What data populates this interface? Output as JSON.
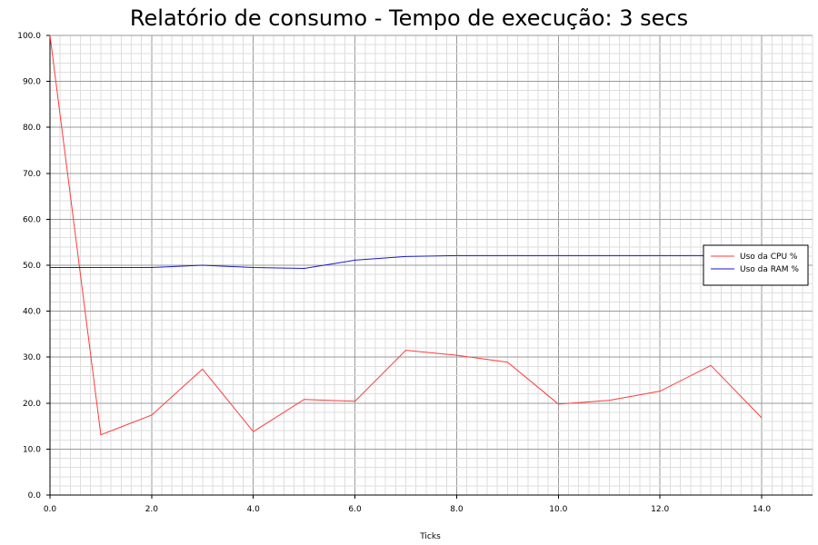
{
  "chart_data": {
    "type": "line",
    "title": "Relatório de consumo - Tempo de execução: 3 secs",
    "xlabel": "Ticks",
    "ylabel": "",
    "xlim": [
      0,
      15
    ],
    "ylim": [
      0,
      100
    ],
    "x_ticks": [
      "0.0",
      "2.0",
      "4.0",
      "6.0",
      "8.0",
      "10.0",
      "12.0",
      "14.0"
    ],
    "y_ticks": [
      "0.0",
      "10.0",
      "20.0",
      "30.0",
      "40.0",
      "50.0",
      "60.0",
      "70.0",
      "80.0",
      "90.0",
      "100.0"
    ],
    "grid": true,
    "legend_position": "right",
    "x": [
      0,
      1,
      2,
      3,
      4,
      5,
      6,
      7,
      8,
      9,
      10,
      11,
      12,
      13,
      14
    ],
    "series": [
      {
        "name": "Uso da CPU %",
        "color": "#ff3b3b",
        "values": [
          100,
          13.1,
          17.4,
          27.4,
          13.8,
          20.8,
          20.4,
          31.5,
          30.4,
          28.9,
          19.8,
          20.6,
          22.6,
          28.2,
          16.8
        ]
      },
      {
        "name": "Uso da RAM %",
        "color": "#1a1acc",
        "values": [
          49.5,
          49.5,
          49.5,
          50.0,
          49.5,
          49.3,
          51.1,
          51.9,
          52.1,
          52.1,
          52.1,
          52.1,
          52.1,
          52.1,
          52.1
        ]
      }
    ]
  }
}
